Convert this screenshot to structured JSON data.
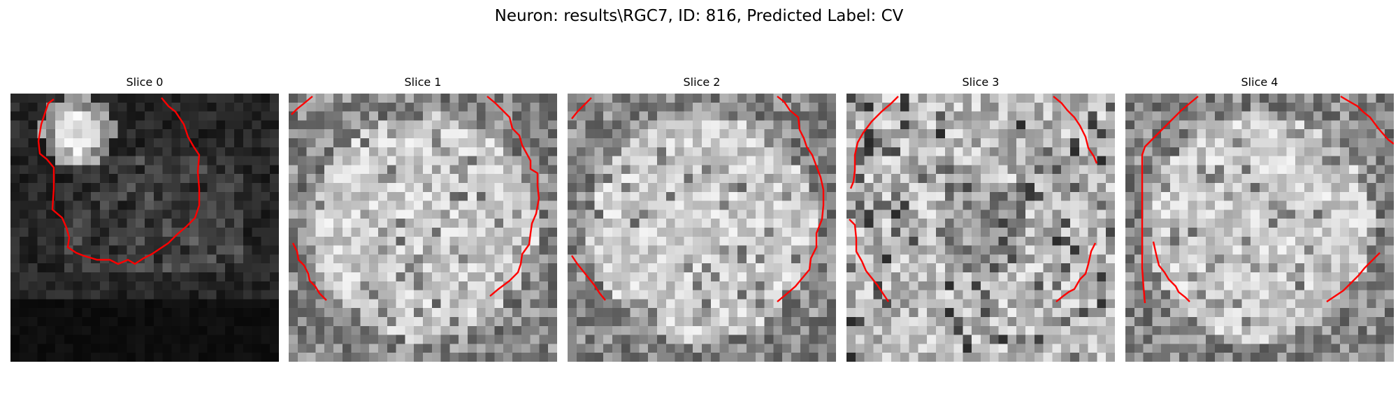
{
  "figure": {
    "title": "Neuron: results\\RGC7, ID: 816, Predicted Label: CV"
  },
  "slices": [
    {
      "title": "Slice 0",
      "mode": "dim",
      "seed": 11
    },
    {
      "title": "Slice 1",
      "mode": "bright",
      "seed": 23
    },
    {
      "title": "Slice 2",
      "mode": "bright",
      "seed": 37
    },
    {
      "title": "Slice 3",
      "mode": "medium",
      "seed": 51
    },
    {
      "title": "Slice 4",
      "mode": "bright",
      "seed": 67
    }
  ],
  "colors": {
    "contour": "#ff0000",
    "background": "#ffffff"
  }
}
